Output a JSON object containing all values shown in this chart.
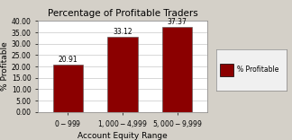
{
  "title": "Percentage of Profitable Traders",
  "categories": [
    "$0 - $999",
    "$1,000 - $4,999",
    "$5,000 - $9,999"
  ],
  "values": [
    20.91,
    33.12,
    37.37
  ],
  "bar_color": "#8B0000",
  "xlabel": "Account Equity Range",
  "ylabel": "% Profitable",
  "ylim": [
    0,
    40
  ],
  "yticks": [
    0,
    5,
    10,
    15,
    20,
    25,
    30,
    35,
    40
  ],
  "ytick_labels": [
    "0.00",
    "5.00",
    "10.00",
    "15.00",
    "20.00",
    "25.00",
    "30.00",
    "35.00",
    "40.00"
  ],
  "legend_label": "% Profitable",
  "legend_marker_color": "#8B0000",
  "fig_facecolor": "#d4d0c8",
  "ax_facecolor": "#ffffff",
  "title_fontsize": 7.5,
  "label_fontsize": 6.5,
  "tick_fontsize": 5.5,
  "value_fontsize": 5.5,
  "grid_color": "#c8c8c8"
}
